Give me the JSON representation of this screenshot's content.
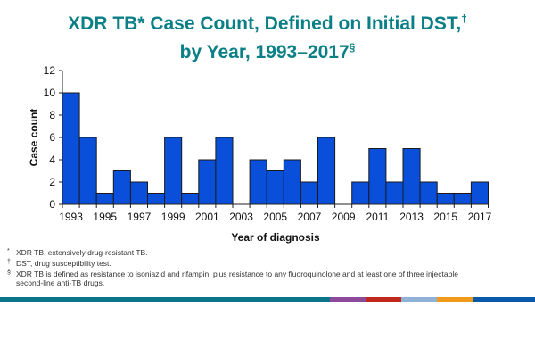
{
  "title_line1": "XDR TB* Case Count, Defined on Initial DST,",
  "title_mark1": "†",
  "title_line2": "by Year, 1993–2017",
  "title_mark2": "§",
  "chart_data": {
    "type": "bar",
    "title": "XDR TB* Case Count, Defined on Initial DST,† by Year, 1993–2017§",
    "xlabel": "Year of diagnosis",
    "ylabel": "Case count",
    "ylim": [
      0,
      12
    ],
    "yticks": [
      0,
      2,
      4,
      6,
      8,
      10,
      12
    ],
    "categories": [
      1993,
      1994,
      1995,
      1996,
      1997,
      1998,
      1999,
      2000,
      2001,
      2002,
      2003,
      2004,
      2005,
      2006,
      2007,
      2008,
      2009,
      2010,
      2011,
      2012,
      2013,
      2014,
      2015,
      2016,
      2017
    ],
    "xtick_labels": [
      "1993",
      "1995",
      "1997",
      "1999",
      "2001",
      "2003",
      "2005",
      "2007",
      "2009",
      "2011",
      "2013",
      "2015",
      "2017"
    ],
    "values": [
      10,
      6,
      1,
      3,
      2,
      1,
      6,
      1,
      4,
      6,
      0,
      4,
      3,
      4,
      2,
      6,
      0,
      2,
      5,
      2,
      5,
      2,
      1,
      1,
      2
    ],
    "bar_color": "#0a4fd9",
    "grid": false
  },
  "footnotes": [
    {
      "mark": "*",
      "text": "XDR TB, extensively drug-resistant TB."
    },
    {
      "mark": "†",
      "text": "DST, drug susceptibility test."
    },
    {
      "mark": "§",
      "text": "XDR TB is defined as resistance to isoniazid and rifampin, plus resistance to any fluoroquinolone and at least one of three injectable second-line anti-TB drugs."
    }
  ],
  "bottom_bar_colors": [
    "#0b7488",
    "#8e4a9a",
    "#c0281c",
    "#8fb2d6",
    "#f09a1c",
    "#0a58a8"
  ]
}
